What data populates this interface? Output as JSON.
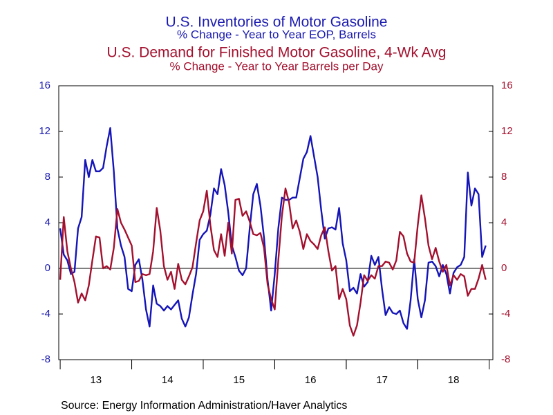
{
  "chart_data": {
    "type": "line",
    "title": "U.S. Inventories of Motor Gasoline",
    "subtitle": "% Change - Year to Year    EOP,  Barrels",
    "title2": "U.S. Demand for Finished Motor Gasoline, 4-Wk Avg",
    "subtitle2": "% Change - Year to Year     Barrels per Day",
    "source": "Source:  Energy Information Administration/Haver Analytics",
    "xlim": [
      2012.98,
      2019.05
    ],
    "xticks": [
      {
        "value": 2013.5,
        "label": "13"
      },
      {
        "value": 2014.5,
        "label": "14"
      },
      {
        "value": 2015.5,
        "label": "15"
      },
      {
        "value": 2016.5,
        "label": "16"
      },
      {
        "value": 2017.5,
        "label": "17"
      },
      {
        "value": 2018.5,
        "label": "18"
      }
    ],
    "ylim": [
      -8,
      16
    ],
    "yticks": [
      -8,
      -4,
      0,
      4,
      8,
      12,
      16
    ],
    "y2lim": [
      -8,
      16
    ],
    "y2ticks": [
      -8,
      -4,
      0,
      4,
      8,
      12,
      16
    ],
    "x": [
      2013,
      2013.05,
      2013.1,
      2013.15,
      2013.2,
      2013.25,
      2013.3,
      2013.35,
      2013.4,
      2013.45,
      2013.5,
      2013.55,
      2013.6,
      2013.65,
      2013.7,
      2013.75,
      2013.8,
      2013.85,
      2013.9,
      2013.95,
      2014,
      2014.05,
      2014.1,
      2014.15,
      2014.2,
      2014.25,
      2014.3,
      2014.35,
      2014.4,
      2014.45,
      2014.5,
      2014.55,
      2014.6,
      2014.65,
      2014.7,
      2014.75,
      2014.8,
      2014.85,
      2014.9,
      2014.95,
      2015,
      2015.05,
      2015.1,
      2015.15,
      2015.2,
      2015.25,
      2015.3,
      2015.35,
      2015.4,
      2015.45,
      2015.5,
      2015.55,
      2015.6,
      2015.65,
      2015.7,
      2015.75,
      2015.8,
      2015.85,
      2015.9,
      2015.95,
      2016,
      2016.05,
      2016.1,
      2016.15,
      2016.2,
      2016.25,
      2016.3,
      2016.35,
      2016.4,
      2016.45,
      2016.5,
      2016.55,
      2016.6,
      2016.65,
      2016.7,
      2016.75,
      2016.8,
      2016.85,
      2016.9,
      2016.95,
      2017,
      2017.05,
      2017.1,
      2017.15,
      2017.2,
      2017.25,
      2017.3,
      2017.35,
      2017.4,
      2017.45,
      2017.5,
      2017.55,
      2017.6,
      2017.65,
      2017.7,
      2017.75,
      2017.8,
      2017.85,
      2017.9,
      2017.95,
      2018,
      2018.05,
      2018.1,
      2018.15,
      2018.2,
      2018.25,
      2018.3,
      2018.35,
      2018.4,
      2018.45,
      2018.5,
      2018.55,
      2018.6,
      2018.65,
      2018.7,
      2018.75,
      2018.8,
      2018.85,
      2018.9,
      2018.95
    ],
    "zero_line": true,
    "series": [
      {
        "name": "U.S. Inventories of Motor Gasoline",
        "color": "#1414b8",
        "axis": "y",
        "values": [
          3.5,
          1.2,
          0.7,
          -0.5,
          -0.3,
          3.5,
          4.5,
          9.5,
          8,
          9.5,
          8.5,
          8.5,
          8.8,
          10.7,
          12.3,
          8.5,
          3.5,
          2,
          1,
          -1.8,
          -2,
          0.3,
          0.8,
          -1,
          -3.6,
          -5.1,
          -1.5,
          -3.1,
          -3.3,
          -3.7,
          -3.3,
          -3.6,
          -3.2,
          -2.8,
          -4.4,
          -5.1,
          -4.3,
          -2.3,
          -0.5,
          2.5,
          3,
          3.3,
          4.7,
          7,
          6.5,
          8.7,
          7.3,
          4.9,
          2,
          1,
          -0.2,
          -0.6,
          0,
          3.5,
          6.5,
          7.4,
          5.5,
          2.7,
          -1,
          -3.7,
          -0.5,
          3.5,
          6.2,
          6,
          6,
          6.2,
          6.2,
          7.9,
          9.6,
          10.2,
          11.6,
          9.8,
          8,
          5.1,
          2.6,
          3.5,
          3.6,
          3.4,
          5.3,
          2.2,
          0.7,
          -2,
          -1.7,
          -2.2,
          -0.5,
          -1.6,
          -1.2,
          1.1,
          0.3,
          1,
          -1.8,
          -4.1,
          -3.4,
          -3.9,
          -4,
          -3.7,
          -4.8,
          -5.3,
          -2.8,
          0.8,
          -2.7,
          -4.3,
          -2.8,
          0.5,
          0.6,
          0.2,
          -0.7,
          0.3,
          -0.5,
          -2.2,
          -0.4,
          0.1,
          0.3,
          1,
          8.4,
          5.5,
          7,
          6.5,
          1,
          2
        ]
      },
      {
        "name": "U.S. Demand for Finished Motor Gasoline, 4-Wk Avg",
        "color": "#a3102e",
        "axis": "y2",
        "values": [
          -1,
          4.5,
          1.5,
          0,
          -1.2,
          -3,
          -2.2,
          -2.8,
          -1.5,
          0.7,
          2.8,
          2.7,
          0,
          0.2,
          -0.1,
          1.8,
          5.2,
          4,
          3.4,
          2.7,
          2,
          -1.2,
          -1.1,
          -0.5,
          -0.6,
          -0.5,
          1.5,
          5.3,
          3.3,
          0.2,
          -1,
          -0.3,
          -1.8,
          0.4,
          -1,
          -1.4,
          -0.7,
          0.1,
          2.2,
          4.2,
          5,
          6.8,
          3.8,
          1.6,
          1,
          3,
          1.1,
          4,
          1.3,
          6,
          6.1,
          4.6,
          5,
          4.1,
          3,
          2.9,
          3.1,
          1.8,
          -1.4,
          -2.7,
          -3.6,
          0.7,
          4.6,
          7,
          5.8,
          3.5,
          4.2,
          3.2,
          1.7,
          3,
          2.4,
          2.1,
          1.7,
          2.9,
          3.6,
          1.5,
          -0.2,
          0.2,
          -2.7,
          -1.8,
          -2.7,
          -5,
          -5.9,
          -5,
          -3,
          -0.6,
          -1.1,
          -0.6,
          -0.9,
          0.2,
          0.2,
          0.6,
          0.5,
          -0.1,
          0.7,
          3.2,
          2.8,
          1.3,
          0.6,
          0.5,
          3.8,
          6.4,
          4.4,
          2,
          0.8,
          1.8,
          0.6,
          -0.3,
          0.3,
          -1.5,
          -0.6,
          -1,
          -0.5,
          -0.7,
          -2.4,
          -1.8,
          -1.8,
          -0.9,
          0.3,
          -1
        ]
      }
    ]
  }
}
